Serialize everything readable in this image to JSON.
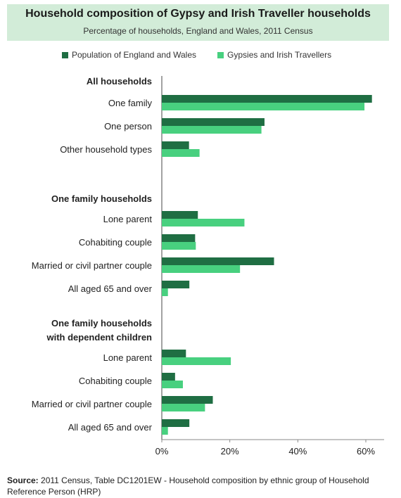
{
  "colors": {
    "population": "#1f6e43",
    "gypsies": "#48d07f",
    "header_bg": "#d2ecd8"
  },
  "chart_data": {
    "type": "bar",
    "orientation": "horizontal",
    "title": "Household composition of Gypsy and Irish Traveller households",
    "subtitle": "Percentage of households, England and Wales, 2011 Census",
    "xlim": [
      0,
      65
    ],
    "xticks": [
      "0%",
      "20%",
      "40%",
      "60%"
    ],
    "xtick_values": [
      0,
      20,
      40,
      60
    ],
    "legend_position": "top",
    "series": [
      {
        "name": "Population of England and Wales",
        "color": "#1f6e43"
      },
      {
        "name": "Gypsies and Irish Travellers",
        "color": "#48d07f"
      }
    ],
    "groups": [
      {
        "heading": [
          "All households"
        ],
        "rows": [
          {
            "label": "One family",
            "values": [
              61.8,
              59.6
            ]
          },
          {
            "label": "One person",
            "values": [
              30.2,
              29.3
            ]
          },
          {
            "label": "Other household types",
            "values": [
              8.0,
              11.1
            ]
          }
        ]
      },
      {
        "heading": [
          "One family households"
        ],
        "rows": [
          {
            "label": "Lone parent",
            "values": [
              10.6,
              24.3
            ]
          },
          {
            "label": "Cohabiting couple",
            "values": [
              9.8,
              10.0
            ]
          },
          {
            "label": "Married or civil partner couple",
            "values": [
              33.0,
              23.0
            ]
          },
          {
            "label": "All aged 65 and over",
            "values": [
              8.1,
              1.8
            ]
          }
        ]
      },
      {
        "heading": [
          "One family households",
          "with dependent children"
        ],
        "rows": [
          {
            "label": "Lone parent",
            "values": [
              7.1,
              20.3
            ]
          },
          {
            "label": "Cohabiting couple",
            "values": [
              3.9,
              6.2
            ]
          },
          {
            "label": "Married or civil partner couple",
            "values": [
              15.0,
              12.7
            ]
          },
          {
            "label": "All aged 65 and over",
            "values": [
              8.1,
              1.8
            ]
          }
        ]
      }
    ]
  },
  "source": {
    "label": "Source:",
    "text": " 2011 Census, Table DC1201EW - Household composition by ethnic group of Household Reference Person (HRP)"
  }
}
